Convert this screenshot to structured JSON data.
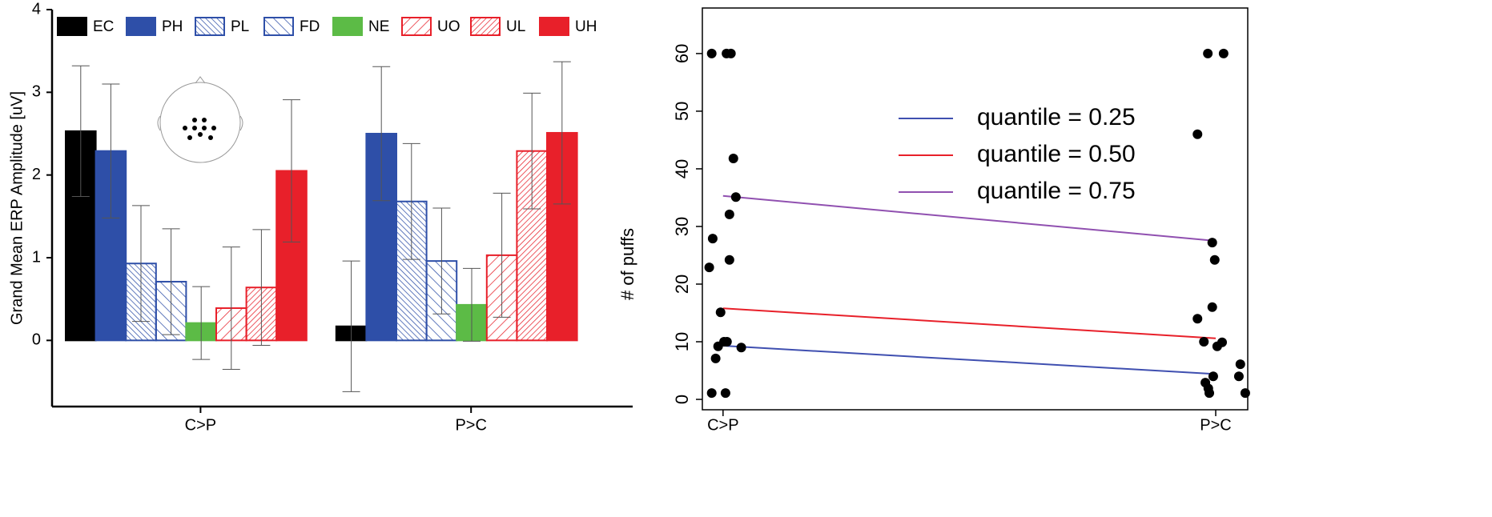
{
  "chart_data": [
    {
      "type": "bar",
      "ylabel": "Grand Mean ERP Amplitude [uV]",
      "categories": [
        "C>P",
        "P>C"
      ],
      "ylim": [
        -0.8,
        4
      ],
      "yticks": [
        0,
        1,
        2,
        3,
        4
      ],
      "legend": "top",
      "series": [
        {
          "name": "EC",
          "color": "#000000",
          "fill": "solid",
          "values": [
            2.53,
            0.17
          ],
          "errors": [
            0.79,
            0.79
          ]
        },
        {
          "name": "PH",
          "color": "#2e4fa8",
          "fill": "solid",
          "values": [
            2.29,
            2.5
          ],
          "errors": [
            0.81,
            0.81
          ]
        },
        {
          "name": "PL",
          "color": "#2e4fa8",
          "fill": "dense-backslash",
          "values": [
            0.93,
            1.68
          ],
          "errors": [
            0.7,
            0.7
          ]
        },
        {
          "name": "FD",
          "color": "#2e4fa8",
          "fill": "backslash",
          "values": [
            0.71,
            0.96
          ],
          "errors": [
            0.64,
            0.64
          ]
        },
        {
          "name": "NE",
          "color": "#5cbb46",
          "fill": "solid",
          "values": [
            0.21,
            0.43
          ],
          "errors": [
            0.44,
            0.44
          ]
        },
        {
          "name": "UO",
          "color": "#e8202a",
          "fill": "slash",
          "values": [
            0.39,
            1.03
          ],
          "errors": [
            0.74,
            0.75
          ]
        },
        {
          "name": "UL",
          "color": "#e8202a",
          "fill": "dense-slash",
          "values": [
            0.64,
            2.29
          ],
          "errors": [
            0.7,
            0.7
          ]
        },
        {
          "name": "UH",
          "color": "#e8202a",
          "fill": "solid",
          "values": [
            2.05,
            2.51
          ],
          "errors": [
            0.86,
            0.86
          ]
        }
      ]
    },
    {
      "type": "scatter",
      "ylabel": "# of puffs",
      "xlim": [
        0.958,
        2.065
      ],
      "xticks": [
        {
          "value": 1,
          "label": "C>P"
        },
        {
          "value": 2,
          "label": "P>C"
        }
      ],
      "ylim": [
        -1.8,
        67.9
      ],
      "yticks": [
        0,
        10,
        20,
        30,
        40,
        50,
        60
      ],
      "legend": "top-right",
      "points": {
        "color": "#000000",
        "x": [
          0.977,
          1.007,
          1.016,
          1.021,
          1.026,
          1.013,
          0.979,
          1.013,
          0.972,
          0.995,
          0.99,
          1.002,
          1.008,
          1.037,
          0.985,
          0.977,
          1.005,
          1.984,
          2.016,
          1.963,
          1.993,
          1.998,
          1.993,
          1.963,
          1.976,
          2.013,
          2.003,
          1.979,
          1.985,
          1.987,
          2.05,
          2.047,
          2.06,
          1.995
        ],
        "y": [
          60,
          60,
          60,
          41.8,
          35.1,
          32.1,
          27.9,
          24.2,
          22.9,
          15.1,
          9.2,
          10,
          10,
          9,
          7.1,
          1.1,
          1.1,
          60,
          60,
          46,
          27.2,
          24.2,
          16,
          14,
          10,
          9.9,
          9.2,
          2.9,
          1.9,
          1.1,
          6.1,
          4,
          1.1,
          4
        ]
      },
      "series": [
        {
          "name": "quantile = 0.25",
          "color": "#3f4fb0",
          "x": [
            1,
            2
          ],
          "values": [
            9.3,
            4.4
          ]
        },
        {
          "name": "quantile = 0.50",
          "color": "#e8202a",
          "x": [
            1,
            2
          ],
          "values": [
            15.8,
            10.6
          ]
        },
        {
          "name": "quantile = 0.75",
          "color": "#9050b0",
          "x": [
            1,
            2
          ],
          "values": [
            35.3,
            27.5
          ]
        }
      ]
    }
  ]
}
